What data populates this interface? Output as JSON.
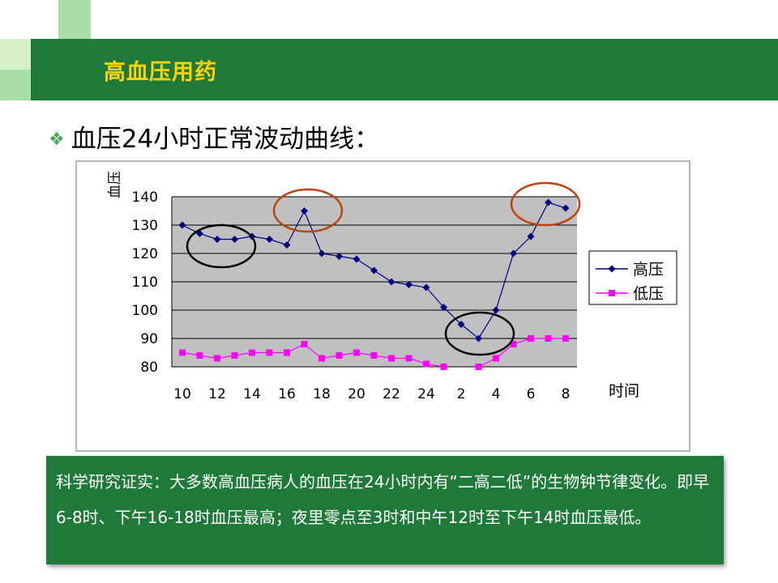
{
  "slide": {
    "title": "高血压用药",
    "bullet": "血压24小时正常波动曲线：",
    "note": "科学研究证实：大多数高血压病人的血压在24小时内有“二高二低”的生物钟节律变化。即早6-8时、下午16-18时血压最高；夜里零点至3时和中午12时至下午14时血压最低。"
  },
  "colors": {
    "title_bar": "#1f7a3a",
    "title_text": "#ffd200",
    "high_series": "#000080",
    "low_series": "#ff00ff",
    "plot_bg": "#c0c0c0",
    "highlight_red": "#c0400f",
    "highlight_black": "#000000"
  },
  "icons": {
    "bullet": "diamond-sparkle-icon"
  },
  "chart_data": {
    "type": "line",
    "ylabel": "血压",
    "xlabel": "时间",
    "ylim": [
      80,
      140
    ],
    "yticks": [
      80,
      90,
      100,
      110,
      120,
      130,
      140
    ],
    "xtick_labels": [
      "10",
      "12",
      "14",
      "16",
      "18",
      "20",
      "22",
      "24",
      "2",
      "4",
      "6",
      "8"
    ],
    "grid": "horizontal",
    "legend_position": "right",
    "series": [
      {
        "name": "高压",
        "marker": "diamond",
        "values": [
          130,
          127,
          125,
          125,
          126,
          125,
          123,
          135,
          120,
          119,
          118,
          114,
          110,
          109,
          108,
          101,
          95,
          90,
          100,
          120,
          126,
          138,
          136
        ]
      },
      {
        "name": "低压",
        "marker": "square",
        "values": [
          85,
          84,
          83,
          84,
          85,
          85,
          85,
          88,
          83,
          84,
          85,
          84,
          83,
          83,
          81,
          80,
          null,
          80,
          83,
          88,
          90,
          90,
          90
        ]
      }
    ],
    "annotations": [
      {
        "shape": "ellipse",
        "color": "black",
        "around": "12-14时"
      },
      {
        "shape": "ellipse",
        "color": "red",
        "around": "16-18时"
      },
      {
        "shape": "ellipse",
        "color": "black",
        "around": "2-4时"
      },
      {
        "shape": "ellipse",
        "color": "red",
        "around": "6-8时"
      }
    ]
  }
}
